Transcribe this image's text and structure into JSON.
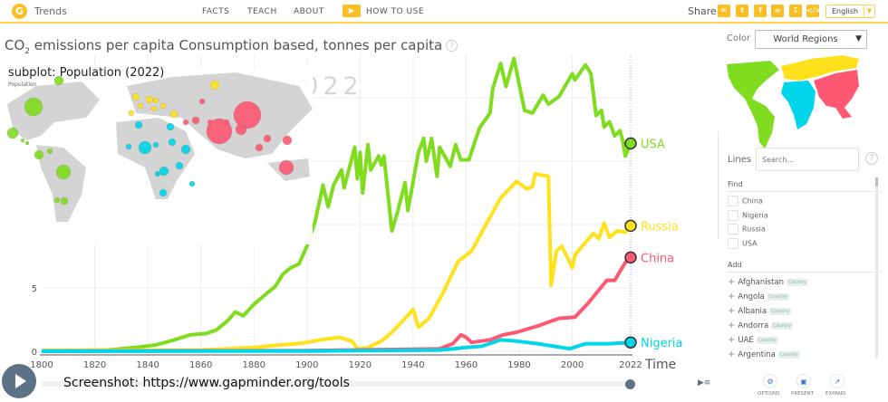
{
  "header": {
    "brand": "Trends",
    "nav": [
      "FACTS",
      "TEACH",
      "ABOUT"
    ],
    "how_to_use": "HOW TO USE",
    "share_label": "Share",
    "share_icons": [
      "mail-icon",
      "twitter-icon",
      "facebook-icon",
      "link-icon",
      "download-icon",
      "embed-icon"
    ],
    "language": "English"
  },
  "chart_title_pre": "CO",
  "chart_title_sub": "2",
  "chart_title_post": " emissions per capita Consumption based, tonnes per capita",
  "subplot": {
    "title": "subplot: Population (2022)",
    "subtitle": "Population"
  },
  "year_watermark": "2022",
  "credit": "Screenshot: https://www.gapminder.org/tools",
  "chart_data": {
    "type": "line",
    "xlabel": "Time",
    "ylabel": "",
    "xlim": [
      1800,
      2022
    ],
    "ylim": [
      0,
      23
    ],
    "x_ticks": [
      "1800",
      "1820",
      "1840",
      "1860",
      "1880",
      "1900",
      "1920",
      "1940",
      "1960",
      "1980",
      "2000",
      "2022"
    ],
    "y_ticks": [
      "0",
      "5"
    ],
    "grid": true,
    "series": [
      {
        "name": "USA",
        "color": "#7fdc1e",
        "points": [
          [
            1800,
            0.05
          ],
          [
            1825,
            0.1
          ],
          [
            1835,
            0.3
          ],
          [
            1843,
            0.5
          ],
          [
            1850,
            0.9
          ],
          [
            1856,
            1.3
          ],
          [
            1862,
            1.4
          ],
          [
            1866,
            1.7
          ],
          [
            1870,
            2.4
          ],
          [
            1873,
            3.1
          ],
          [
            1876,
            2.8
          ],
          [
            1880,
            3.7
          ],
          [
            1885,
            4.6
          ],
          [
            1888,
            5.1
          ],
          [
            1891,
            6.1
          ],
          [
            1894,
            6.6
          ],
          [
            1897,
            6.9
          ],
          [
            1900,
            8.3
          ],
          [
            1903,
            10.2
          ],
          [
            1906,
            13.1
          ],
          [
            1908,
            11.4
          ],
          [
            1910,
            13.1
          ],
          [
            1913,
            14.3
          ],
          [
            1914,
            12.9
          ],
          [
            1918,
            16.1
          ],
          [
            1919,
            13.6
          ],
          [
            1920,
            15.7
          ],
          [
            1921,
            12.5
          ],
          [
            1923,
            16.3
          ],
          [
            1924,
            14.3
          ],
          [
            1927,
            15.4
          ],
          [
            1928,
            14.7
          ],
          [
            1929,
            15.4
          ],
          [
            1932,
            9.5
          ],
          [
            1934,
            10.9
          ],
          [
            1937,
            13.3
          ],
          [
            1938,
            11.1
          ],
          [
            1942,
            15.7
          ],
          [
            1944,
            16.8
          ],
          [
            1945,
            15
          ],
          [
            1947,
            16.8
          ],
          [
            1949,
            13.8
          ],
          [
            1950,
            16.1
          ],
          [
            1954,
            14.6
          ],
          [
            1956,
            16.3
          ],
          [
            1958,
            15.1
          ],
          [
            1961,
            15.1
          ],
          [
            1965,
            17.6
          ],
          [
            1969,
            18.8
          ],
          [
            1970,
            20.7
          ],
          [
            1973,
            22.7
          ],
          [
            1975,
            20.9
          ],
          [
            1978,
            23.1
          ],
          [
            1982,
            19
          ],
          [
            1985,
            18.8
          ],
          [
            1989,
            20.2
          ],
          [
            1991,
            19.5
          ],
          [
            1995,
            20.1
          ],
          [
            2000,
            21.9
          ],
          [
            2001,
            21.4
          ],
          [
            2005,
            22.6
          ],
          [
            2007,
            21.9
          ],
          [
            2009,
            18.6
          ],
          [
            2011,
            19
          ],
          [
            2012,
            17.7
          ],
          [
            2014,
            18.1
          ],
          [
            2016,
            17
          ],
          [
            2018,
            17.4
          ],
          [
            2019,
            16.6
          ],
          [
            2020,
            15.4
          ],
          [
            2022,
            16.4
          ]
        ]
      },
      {
        "name": "Russia",
        "color": "#ffe21c",
        "points": [
          [
            1800,
            0.05
          ],
          [
            1860,
            0.1
          ],
          [
            1880,
            0.3
          ],
          [
            1890,
            0.5
          ],
          [
            1896,
            0.6
          ],
          [
            1900,
            0.7
          ],
          [
            1905,
            0.9
          ],
          [
            1912,
            1.1
          ],
          [
            1917,
            0.8
          ],
          [
            1919,
            0.2
          ],
          [
            1923,
            0.3
          ],
          [
            1928,
            0.8
          ],
          [
            1932,
            1.5
          ],
          [
            1937,
            2.6
          ],
          [
            1940,
            3.3
          ],
          [
            1942,
            1.9
          ],
          [
            1946,
            2.6
          ],
          [
            1951,
            4.5
          ],
          [
            1957,
            7.1
          ],
          [
            1962,
            7.9
          ],
          [
            1968,
            10.2
          ],
          [
            1973,
            12.1
          ],
          [
            1979,
            13.4
          ],
          [
            1983,
            12.8
          ],
          [
            1985,
            13
          ],
          [
            1986,
            14
          ],
          [
            1991,
            13.8
          ],
          [
            1992,
            5.2
          ],
          [
            1994,
            7.9
          ],
          [
            1996,
            8.3
          ],
          [
            2000,
            6.6
          ],
          [
            2001,
            7.6
          ],
          [
            2005,
            8.6
          ],
          [
            2008,
            9.3
          ],
          [
            2010,
            8.9
          ],
          [
            2012,
            10.1
          ],
          [
            2014,
            9
          ],
          [
            2017,
            9.5
          ],
          [
            2020,
            9.4
          ],
          [
            2022,
            9.9
          ]
        ]
      },
      {
        "name": "China",
        "color": "#ff5872",
        "points": [
          [
            1800,
            0.02
          ],
          [
            1900,
            0.05
          ],
          [
            1950,
            0.2
          ],
          [
            1955,
            0.6
          ],
          [
            1958,
            1.3
          ],
          [
            1960,
            1.1
          ],
          [
            1962,
            0.7
          ],
          [
            1969,
            0.9
          ],
          [
            1974,
            1.3
          ],
          [
            1979,
            1.5
          ],
          [
            1987,
            2
          ],
          [
            1995,
            2.6
          ],
          [
            2001,
            2.7
          ],
          [
            2006,
            3.8
          ],
          [
            2013,
            5.6
          ],
          [
            2016,
            5.6
          ],
          [
            2020,
            7
          ],
          [
            2022,
            7.4
          ]
        ]
      },
      {
        "name": "Nigeria",
        "color": "#00d5e9",
        "points": [
          [
            1800,
            0.0
          ],
          [
            1900,
            0.02
          ],
          [
            1950,
            0.1
          ],
          [
            1960,
            0.3
          ],
          [
            1966,
            0.4
          ],
          [
            1973,
            0.9
          ],
          [
            1979,
            0.8
          ],
          [
            1987,
            0.6
          ],
          [
            1999,
            0.2
          ],
          [
            2005,
            0.6
          ],
          [
            2014,
            0.6
          ],
          [
            2022,
            0.7
          ]
        ]
      }
    ]
  },
  "sidebar": {
    "color_label": "Color",
    "color_value": "World Regions",
    "lines_label": "Lines",
    "search_placeholder": "Search...",
    "find_label": "Find",
    "find_items": [
      "China",
      "Nigeria",
      "Russia",
      "USA"
    ],
    "add_label": "Add",
    "add_items": [
      {
        "name": "Afghanistan",
        "tag": "Country"
      },
      {
        "name": "Angola",
        "tag": "Country"
      },
      {
        "name": "Albania",
        "tag": "Country"
      },
      {
        "name": "Andorra",
        "tag": "Country"
      },
      {
        "name": "UAE",
        "tag": "Country"
      },
      {
        "name": "Argentina",
        "tag": "Country"
      }
    ],
    "buttons": [
      "OPTIONS",
      "PRESENT",
      "EXPAND"
    ],
    "region_colors": {
      "americas": "#7fdc1e",
      "europe": "#ffe21c",
      "africa": "#00d5e9",
      "asia": "#ff5872"
    }
  }
}
